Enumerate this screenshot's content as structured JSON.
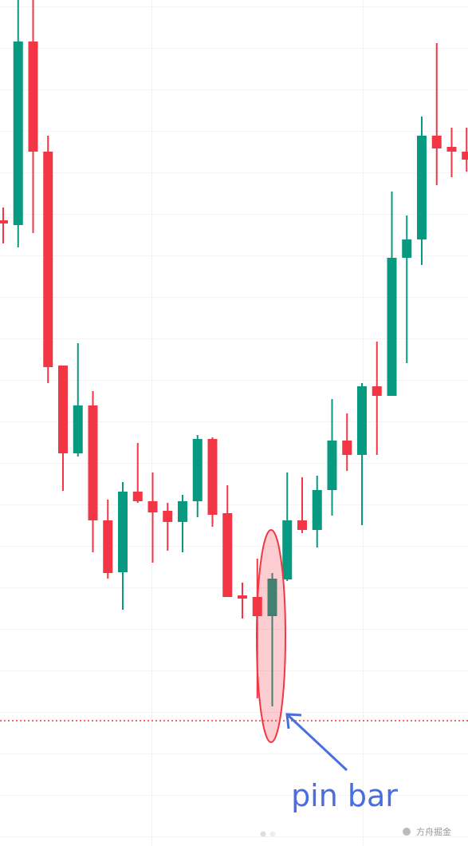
{
  "chart_data": {
    "type": "candlestick",
    "open": [
      784,
      778,
      1008,
      870,
      602,
      492,
      552,
      408,
      343,
      444,
      432,
      420,
      406,
      432,
      510,
      417,
      314,
      312,
      288,
      334,
      408,
      396,
      446,
      508,
      490,
      576,
      564,
      737,
      760,
      890,
      876,
      870
    ],
    "high": [
      800,
      1060,
      1060,
      890,
      602,
      630,
      570,
      434,
      456,
      505,
      468,
      430,
      440,
      515,
      512,
      452,
      330,
      360,
      342,
      468,
      462,
      464,
      560,
      542,
      580,
      632,
      820,
      790,
      914,
      1006,
      900,
      900
    ],
    "low": [
      755,
      750,
      768,
      580,
      445,
      488,
      368,
      335,
      296,
      430,
      355,
      370,
      368,
      412,
      400,
      312,
      285,
      185,
      175,
      332,
      392,
      374,
      414,
      470,
      402,
      490,
      564,
      605,
      728,
      828,
      838,
      845
    ],
    "close": [
      780,
      1008,
      870,
      600,
      492,
      552,
      408,
      342,
      444,
      432,
      418,
      406,
      432,
      510,
      415,
      312,
      310,
      288,
      335,
      408,
      396,
      446,
      508,
      490,
      576,
      564,
      737,
      760,
      890,
      874,
      870,
      860
    ],
    "up_color": "#089981",
    "down_color": "#f23645",
    "ylim": [
      0,
      1060
    ],
    "price_line": 157,
    "annotation": "pin bar",
    "watermark": "方舟掘金"
  }
}
